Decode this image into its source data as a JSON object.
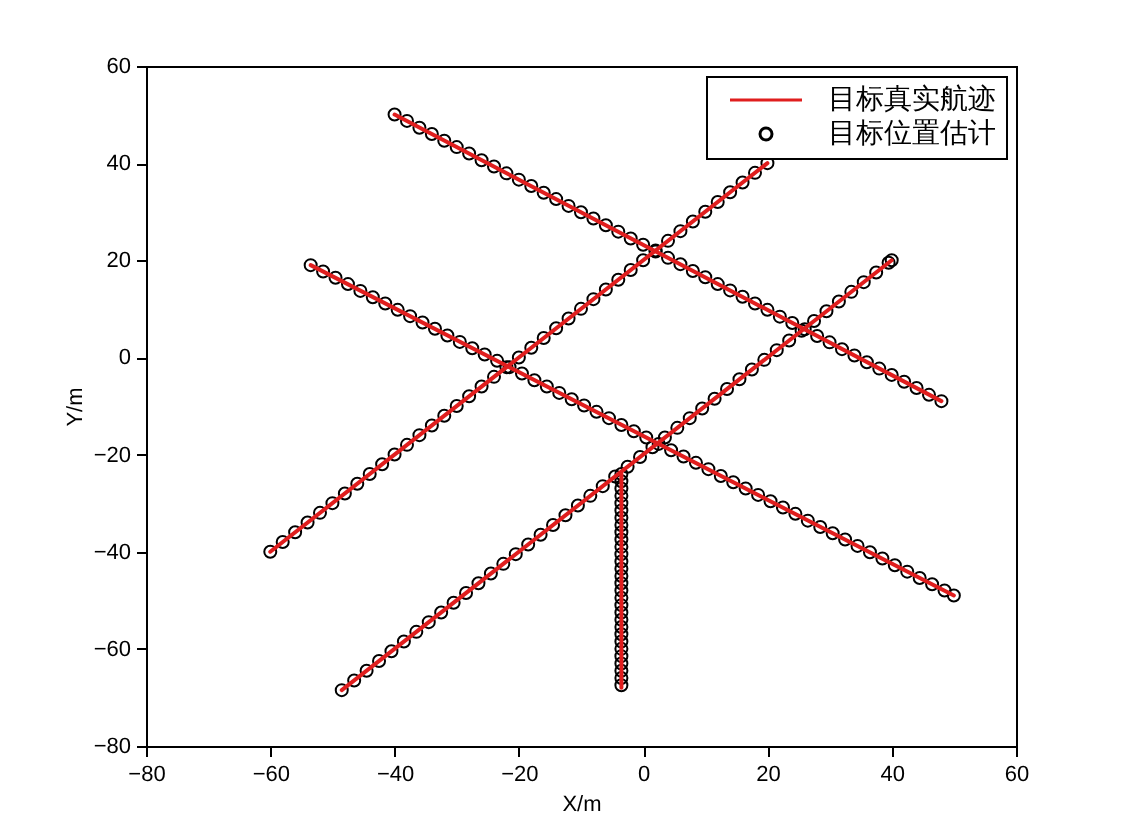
{
  "chart_data": {
    "type": "line",
    "xlabel": "X/m",
    "ylabel": "Y/m",
    "xlim": [
      -80,
      60
    ],
    "ylim": [
      -80,
      60
    ],
    "xticks": [
      -80,
      -60,
      -40,
      -20,
      0,
      20,
      40,
      60
    ],
    "yticks": [
      -80,
      -60,
      -40,
      -20,
      0,
      20,
      40,
      60
    ],
    "legend": "top right",
    "series": [
      {
        "name": "目标真实航迹",
        "color": "#e01e1e",
        "marker": "none",
        "line_style": "solid",
        "x": [
          -40,
          48,
          null,
          -60,
          20,
          null,
          -53.5,
          50,
          null,
          -48.5,
          40,
          null,
          -3.5,
          -3.5
        ],
        "values": [
          50,
          -9,
          null,
          -40,
          40,
          null,
          19,
          -49,
          null,
          -68.5,
          20,
          null,
          -24,
          -68
        ]
      },
      {
        "name": "目标位置估计",
        "type": "scatter",
        "color": "#000000",
        "marker": "circle",
        "x": [
          -40,
          -38,
          -36,
          -34,
          -32,
          -30,
          -28,
          -26,
          -24,
          -22,
          -20,
          -18,
          -16,
          -14,
          -12,
          -10,
          -8,
          -6,
          -4,
          -2,
          0,
          2,
          4,
          6,
          8,
          10,
          12,
          14,
          16,
          18,
          20,
          22,
          24,
          26,
          28,
          30,
          32,
          34,
          36,
          38,
          40,
          42,
          44,
          46,
          48,
          -60,
          -58,
          -56,
          -54,
          -52,
          -50,
          -48,
          -46,
          -44,
          -42,
          -40,
          -38,
          -36,
          -34,
          -32,
          -30,
          -28,
          -26,
          -24,
          -22,
          -20,
          -18,
          -16,
          -14,
          -12,
          -10,
          -8,
          -6,
          -4,
          -2,
          0,
          2,
          4,
          6,
          8,
          10,
          12,
          14,
          16,
          18,
          20,
          -53.5,
          -51.5,
          -49.5,
          -47.5,
          -45.5,
          -43.5,
          -41.5,
          -39.5,
          -37.5,
          -35.5,
          -33.5,
          -31.5,
          -29.5,
          -27.5,
          -25.5,
          -23.5,
          -21.5,
          -19.5,
          -17.5,
          -15.5,
          -13.5,
          -11.5,
          -9.5,
          -7.5,
          -5.5,
          -3.5,
          -1.5,
          0.5,
          2.5,
          4.5,
          6.5,
          8.5,
          10.5,
          12.5,
          14.5,
          16.5,
          18.5,
          20.5,
          22.5,
          24.5,
          26.5,
          28.5,
          30.5,
          32.5,
          34.5,
          36.5,
          38.5,
          40.5,
          42.5,
          44.5,
          46.5,
          48.5,
          50,
          -48.5,
          -46.5,
          -44.5,
          -42.5,
          -40.5,
          -38.5,
          -36.5,
          -34.5,
          -32.5,
          -30.5,
          -28.5,
          -26.5,
          -24.5,
          -22.5,
          -20.5,
          -18.5,
          -16.5,
          -14.5,
          -12.5,
          -10.5,
          -8.5,
          -6.5,
          -4.5,
          -2.5,
          -0.5,
          1.5,
          3.5,
          5.5,
          7.5,
          9.5,
          11.5,
          13.5,
          15.5,
          17.5,
          19.5,
          21.5,
          23.5,
          25.5,
          27.5,
          29.5,
          31.5,
          33.5,
          35.5,
          37.5,
          39.5,
          40,
          -3.5,
          -3.5,
          -3.5,
          -3.5,
          -3.5,
          -3.5,
          -3.5,
          -3.5,
          -3.5,
          -3.5,
          -3.5,
          -3.5,
          -3.5,
          -3.5,
          -3.5,
          -3.5,
          -3.5,
          -3.5,
          -3.5,
          -3.5,
          -3.5,
          -3.5,
          -3.5,
          -3.5,
          -3.5,
          -3.5,
          -3.5,
          -3.5,
          -3.5,
          -3.5
        ],
        "values": [
          50,
          48.7,
          47.3,
          46,
          44.6,
          43.3,
          42,
          40.6,
          39.3,
          37.9,
          36.6,
          35.3,
          33.9,
          32.6,
          31.2,
          29.9,
          28.6,
          27.2,
          25.9,
          24.5,
          23.2,
          21.8,
          20.5,
          19.2,
          17.8,
          16.5,
          15.1,
          13.8,
          12.5,
          11.1,
          9.8,
          8.4,
          7.1,
          5.8,
          4.4,
          3.1,
          1.7,
          0.4,
          -1,
          -2.3,
          -3.6,
          -5,
          -6.3,
          -7.7,
          -9,
          -40,
          -38,
          -36,
          -34,
          -32,
          -30,
          -28,
          -26,
          -24,
          -22,
          -20,
          -18,
          -16,
          -14,
          -12,
          -10,
          -8,
          -6,
          -4,
          -2,
          0,
          2,
          4,
          6,
          8,
          10,
          12,
          14,
          16,
          18,
          20,
          22,
          24,
          26,
          28,
          30,
          32,
          34,
          36,
          38,
          40,
          19,
          17.7,
          16.4,
          15.1,
          13.7,
          12.4,
          11.1,
          9.8,
          8.5,
          7.2,
          5.9,
          4.5,
          3.2,
          1.9,
          0.6,
          -0.7,
          -2,
          -3.3,
          -4.7,
          -6,
          -7.3,
          -8.6,
          -9.9,
          -11.2,
          -12.5,
          -13.9,
          -15.2,
          -16.5,
          -17.8,
          -19.1,
          -20.4,
          -21.7,
          -23,
          -24.4,
          -25.7,
          -27,
          -28.3,
          -29.6,
          -30.9,
          -32.2,
          -33.6,
          -34.9,
          -36.2,
          -37.5,
          -38.8,
          -40.1,
          -41.4,
          -42.8,
          -44.1,
          -45.4,
          -46.7,
          -48,
          -49,
          -68.5,
          -66.5,
          -64.5,
          -62.5,
          -60.5,
          -58.5,
          -56.5,
          -54.5,
          -52.5,
          -50.5,
          -48.5,
          -46.5,
          -44.5,
          -42.5,
          -40.5,
          -38.5,
          -36.5,
          -34.5,
          -32.5,
          -30.5,
          -28.5,
          -26.5,
          -24.5,
          -22.5,
          -20.5,
          -18.5,
          -16.5,
          -14.5,
          -12.5,
          -10.5,
          -8.5,
          -6.5,
          -4.5,
          -2.5,
          -0.5,
          1.5,
          3.5,
          5.5,
          7.5,
          9.5,
          11.5,
          13.5,
          15.5,
          17.5,
          19.5,
          20,
          -24,
          -25.5,
          -27,
          -28.5,
          -30,
          -31.5,
          -33,
          -34.5,
          -36,
          -37.5,
          -39,
          -40.5,
          -42,
          -43.5,
          -45,
          -46.5,
          -48,
          -49.5,
          -51,
          -52.5,
          -54,
          -55.5,
          -57,
          -58.5,
          -60,
          -61.5,
          -63,
          -64.5,
          -66,
          -67.5
        ]
      }
    ]
  }
}
